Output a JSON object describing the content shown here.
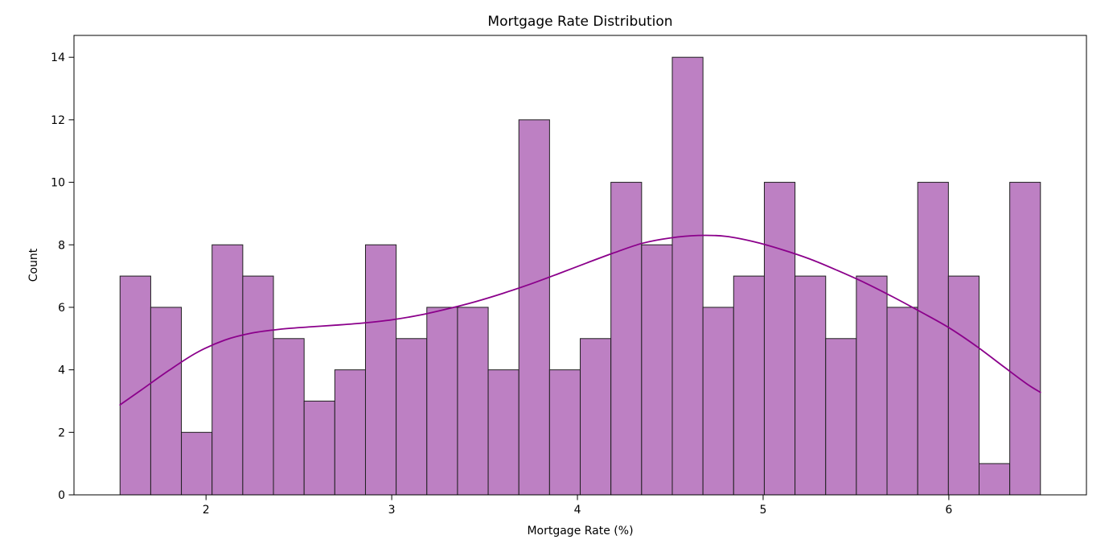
{
  "figure": {
    "title": "Mortgage Rate Distribution",
    "xlabel": "Mortgage Rate (%)",
    "ylabel": "Count"
  },
  "chart_data": {
    "type": "bar",
    "subtype": "histogram-with-kde",
    "title": "Mortgage Rate Distribution",
    "xlabel": "Mortgage Rate (%)",
    "ylabel": "Count",
    "grid": false,
    "legend_position": "none",
    "bin_start": 1.537,
    "bin_width": 0.16521,
    "counts": [
      7,
      6,
      2,
      8,
      7,
      5,
      3,
      4,
      8,
      5,
      6,
      6,
      4,
      12,
      4,
      5,
      10,
      8,
      14,
      6,
      7,
      10,
      7,
      5,
      7,
      6,
      10,
      7,
      1,
      10
    ],
    "total_observations": 200,
    "x_ticks": [
      2,
      3,
      4,
      5,
      6
    ],
    "y_ticks": [
      0,
      2,
      4,
      6,
      8,
      10,
      12,
      14
    ],
    "xlim": [
      1.289,
      6.741
    ],
    "ylim": [
      0,
      14.7
    ],
    "kde_curve": {
      "points": [
        [
          1.537,
          2.88
        ],
        [
          1.65,
          3.35
        ],
        [
          1.8,
          3.98
        ],
        [
          1.95,
          4.55
        ],
        [
          2.1,
          4.95
        ],
        [
          2.25,
          5.18
        ],
        [
          2.4,
          5.3
        ],
        [
          2.55,
          5.37
        ],
        [
          2.7,
          5.43
        ],
        [
          2.85,
          5.5
        ],
        [
          3.0,
          5.6
        ],
        [
          3.15,
          5.75
        ],
        [
          3.3,
          5.95
        ],
        [
          3.45,
          6.18
        ],
        [
          3.6,
          6.45
        ],
        [
          3.75,
          6.75
        ],
        [
          3.9,
          7.08
        ],
        [
          4.05,
          7.42
        ],
        [
          4.2,
          7.75
        ],
        [
          4.35,
          8.05
        ],
        [
          4.5,
          8.22
        ],
        [
          4.65,
          8.3
        ],
        [
          4.8,
          8.27
        ],
        [
          4.95,
          8.1
        ],
        [
          5.1,
          7.85
        ],
        [
          5.25,
          7.55
        ],
        [
          5.4,
          7.18
        ],
        [
          5.55,
          6.78
        ],
        [
          5.7,
          6.33
        ],
        [
          5.85,
          5.85
        ],
        [
          6.0,
          5.35
        ],
        [
          6.15,
          4.75
        ],
        [
          6.3,
          4.08
        ],
        [
          6.42,
          3.55
        ],
        [
          6.493,
          3.28
        ]
      ]
    },
    "colors": {
      "bar_fill": "#bd80c3",
      "bar_edge": "#1f1f1f",
      "kde": "#8b008b",
      "spine": "#000000",
      "text": "#000000",
      "background": "#ffffff"
    }
  }
}
